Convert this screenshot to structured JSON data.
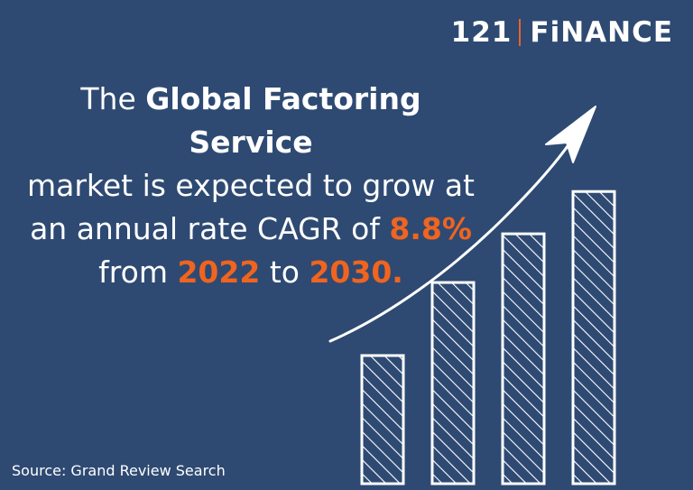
{
  "logo": {
    "left": "121",
    "right": "FiNANCE"
  },
  "headline": {
    "line1_pre": "The ",
    "line1_bold": "Global Factoring Service",
    "line2": "market is expected to grow at",
    "line3_pre": "an annual rate CAGR of ",
    "rate": "8.8%",
    "line4_pre": "from ",
    "year_start": "2022",
    "line4_mid": " to ",
    "year_end": "2030."
  },
  "source": "Source: Grand Review Search",
  "colors": {
    "background": "#2e4a72",
    "accent": "#f0641f",
    "ink": "#ffffff"
  },
  "chart_data": {
    "type": "bar",
    "categories": [
      "",
      "",
      "",
      ""
    ],
    "values": [
      1,
      1.57,
      1.95,
      2.28
    ],
    "trend_arrow": "up",
    "style": "hand-drawn hatched bars"
  }
}
